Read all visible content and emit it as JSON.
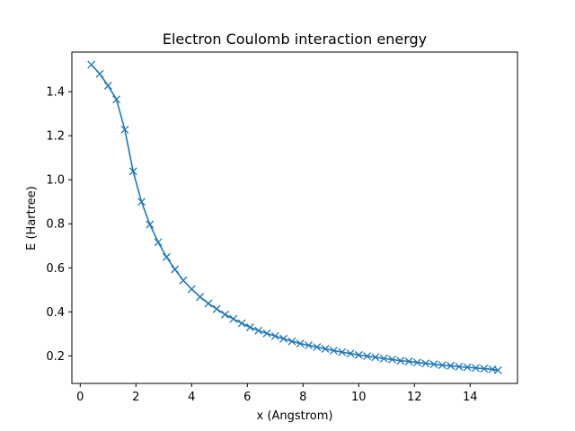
{
  "chart_data": {
    "type": "line",
    "title": "Electron Coulomb interaction energy",
    "xlabel": "x (Angstrom)",
    "ylabel": "E (Hartree)",
    "xlim": [
      -0.3,
      15.7
    ],
    "ylim": [
      0.075,
      1.58
    ],
    "xticks": [
      0,
      2,
      4,
      6,
      8,
      10,
      12,
      14
    ],
    "yticks": [
      0.2,
      0.4,
      0.6,
      0.8,
      1.0,
      1.2,
      1.4
    ],
    "xtick_labels": [
      "0",
      "2",
      "4",
      "6",
      "8",
      "10",
      "12",
      "14"
    ],
    "ytick_labels": [
      "0.2",
      "0.4",
      "0.6",
      "0.8",
      "1.0",
      "1.2",
      "1.4"
    ],
    "grid": false,
    "legend": false,
    "series": [
      {
        "color": "#1f77b4",
        "marker": "x",
        "x": [
          0.4,
          0.7,
          1.0,
          1.3,
          1.6,
          1.9,
          2.2,
          2.5,
          2.8,
          3.1,
          3.4,
          3.7,
          4.0,
          4.3,
          4.6,
          4.9,
          5.2,
          5.5,
          5.8,
          6.1,
          6.4,
          6.7,
          7.0,
          7.3,
          7.6,
          7.9,
          8.2,
          8.5,
          8.8,
          9.1,
          9.4,
          9.7,
          10.0,
          10.3,
          10.6,
          10.9,
          11.2,
          11.5,
          11.8,
          12.1,
          12.4,
          12.7,
          13.0,
          13.3,
          13.6,
          13.9,
          14.2,
          14.5,
          14.8,
          15.0
        ],
        "y": [
          1.523,
          1.481,
          1.427,
          1.365,
          1.228,
          1.038,
          0.9,
          0.797,
          0.716,
          0.649,
          0.593,
          0.543,
          0.503,
          0.468,
          0.438,
          0.413,
          0.388,
          0.368,
          0.348,
          0.33,
          0.315,
          0.302,
          0.29,
          0.278,
          0.266,
          0.256,
          0.248,
          0.24,
          0.232,
          0.224,
          0.217,
          0.211,
          0.204,
          0.199,
          0.194,
          0.188,
          0.184,
          0.178,
          0.175,
          0.17,
          0.166,
          0.162,
          0.158,
          0.155,
          0.151,
          0.148,
          0.145,
          0.142,
          0.139,
          0.135
        ]
      }
    ]
  }
}
